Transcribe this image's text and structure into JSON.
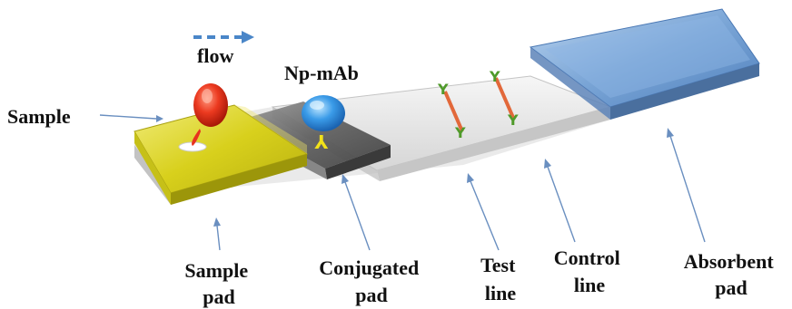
{
  "labels": {
    "flow": "flow",
    "sample": "Sample",
    "np_mab": "Np-mAb",
    "sample_pad": [
      "Sample",
      "pad"
    ],
    "conjugated_pad": [
      "Conjugated",
      "pad"
    ],
    "test_line": [
      "Test",
      "line"
    ],
    "control_line": [
      "Control",
      "line"
    ],
    "absorbent_pad": [
      "Absorbent",
      "pad"
    ]
  },
  "colors": {
    "flow_arrow": "#4a86c8",
    "sample_pad": "#d9d21a",
    "conjugate_pad": "#5a5a5a",
    "membrane": "#e4e4e4",
    "absorbent_pad": "#7fa7d6",
    "sample_drop": "#e8321e",
    "antibody_particle": "#3a9be8",
    "antibody": "#f2e21a",
    "capture_antibody": "#4f9a2a",
    "line_stripe": "#e2683a"
  }
}
